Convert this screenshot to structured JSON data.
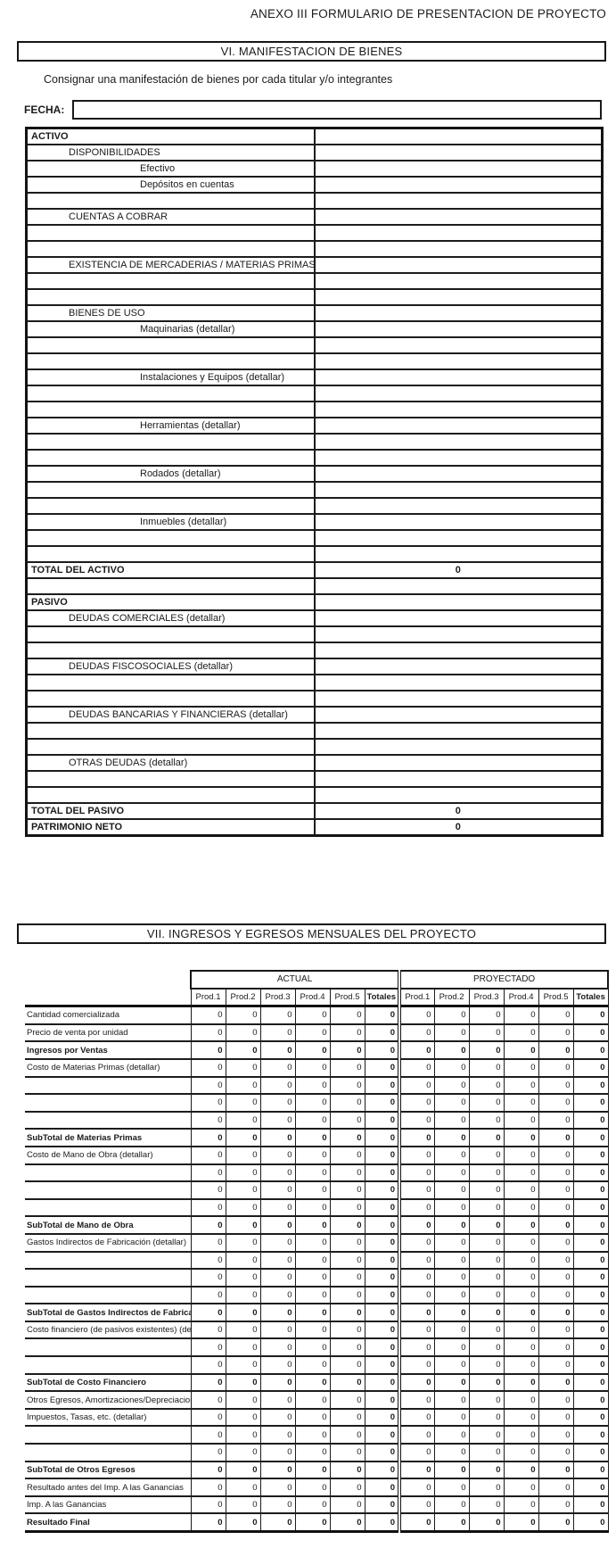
{
  "doc_title": "ANEXO III FORMULARIO DE PRESENTACION DE PROYECTO",
  "ink_color": "#1b1b1b",
  "section6": {
    "header": "VI. MANIFESTACION DE BIENES",
    "instruction": "Consignar una manifestación de bienes por cada titular y/o integrantes",
    "fecha_label": "FECHA:",
    "fecha_value": "",
    "rows": [
      {
        "label": "ACTIVO",
        "indent": 0,
        "bold": true,
        "value": ""
      },
      {
        "label": "DISPONIBILIDADES",
        "indent": 1
      },
      {
        "label": "Efectivo",
        "indent": 2
      },
      {
        "label": "Depósitos en cuentas",
        "indent": 2
      },
      {
        "label": ""
      },
      {
        "label": "CUENTAS A COBRAR",
        "indent": 1
      },
      {
        "label": ""
      },
      {
        "label": ""
      },
      {
        "label": "EXISTENCIA DE MERCADERIAS / MATERIAS PRIMAS",
        "indent": 1
      },
      {
        "label": ""
      },
      {
        "label": ""
      },
      {
        "label": "BIENES DE USO",
        "indent": 1
      },
      {
        "label": "Maquinarias (detallar)",
        "indent": 2
      },
      {
        "label": ""
      },
      {
        "label": ""
      },
      {
        "label": "Instalaciones y Equipos (detallar)",
        "indent": 2
      },
      {
        "label": ""
      },
      {
        "label": ""
      },
      {
        "label": "Herramientas (detallar)",
        "indent": 2
      },
      {
        "label": ""
      },
      {
        "label": ""
      },
      {
        "label": "Rodados (detallar)",
        "indent": 2
      },
      {
        "label": ""
      },
      {
        "label": ""
      },
      {
        "label": "Inmuebles (detallar)",
        "indent": 2
      },
      {
        "label": ""
      },
      {
        "label": ""
      },
      {
        "label": "TOTAL DEL ACTIVO",
        "indent": 0,
        "bold": true,
        "value": "0"
      },
      {
        "label": ""
      },
      {
        "label": "PASIVO",
        "indent": 0,
        "bold": true
      },
      {
        "label": "DEUDAS COMERCIALES (detallar)",
        "indent": 1
      },
      {
        "label": ""
      },
      {
        "label": ""
      },
      {
        "label": "DEUDAS FISCOSOCIALES (detallar)",
        "indent": 1
      },
      {
        "label": ""
      },
      {
        "label": ""
      },
      {
        "label": "DEUDAS BANCARIAS Y FINANCIERAS (detallar)",
        "indent": 1
      },
      {
        "label": ""
      },
      {
        "label": ""
      },
      {
        "label": "OTRAS DEUDAS (detallar)",
        "indent": 1
      },
      {
        "label": ""
      },
      {
        "label": ""
      },
      {
        "label": "TOTAL DEL PASIVO",
        "indent": 0,
        "bold": true,
        "value": "0"
      },
      {
        "label": "PATRIMONIO NETO",
        "indent": 0,
        "bold": true,
        "value": "0"
      }
    ]
  },
  "section7": {
    "header": "VII. INGRESOS Y EGRESOS MENSUALES DEL PROYECTO",
    "column_groups": [
      "ACTUAL",
      "PROYECTADO"
    ],
    "columns": [
      "Prod.1",
      "Prod.2",
      "Prod.3",
      "Prod.4",
      "Prod.5",
      "Totales"
    ],
    "rows": [
      {
        "label": "Cantidad comercializada",
        "values": [
          0,
          0,
          0,
          0,
          0,
          0,
          0,
          0,
          0,
          0,
          0,
          0
        ]
      },
      {
        "label": "Precio de venta por unidad",
        "values": [
          0,
          0,
          0,
          0,
          0,
          0,
          0,
          0,
          0,
          0,
          0,
          0
        ]
      },
      {
        "label": "Ingresos por Ventas",
        "bold": true,
        "values": [
          0,
          0,
          0,
          0,
          0,
          0,
          0,
          0,
          0,
          0,
          0,
          0
        ]
      },
      {
        "label": "Costo de Materias Primas (detallar)",
        "values": [
          0,
          0,
          0,
          0,
          0,
          0,
          0,
          0,
          0,
          0,
          0,
          0
        ]
      },
      {
        "label": "",
        "values": [
          0,
          0,
          0,
          0,
          0,
          0,
          0,
          0,
          0,
          0,
          0,
          0
        ]
      },
      {
        "label": "",
        "values": [
          0,
          0,
          0,
          0,
          0,
          0,
          0,
          0,
          0,
          0,
          0,
          0
        ]
      },
      {
        "label": "",
        "values": [
          0,
          0,
          0,
          0,
          0,
          0,
          0,
          0,
          0,
          0,
          0,
          0
        ]
      },
      {
        "label": "SubTotal de Materias Primas",
        "bold": true,
        "values": [
          0,
          0,
          0,
          0,
          0,
          0,
          0,
          0,
          0,
          0,
          0,
          0
        ]
      },
      {
        "label": "Costo de Mano de Obra (detallar)",
        "values": [
          0,
          0,
          0,
          0,
          0,
          0,
          0,
          0,
          0,
          0,
          0,
          0
        ]
      },
      {
        "label": "",
        "values": [
          0,
          0,
          0,
          0,
          0,
          0,
          0,
          0,
          0,
          0,
          0,
          0
        ]
      },
      {
        "label": "",
        "values": [
          0,
          0,
          0,
          0,
          0,
          0,
          0,
          0,
          0,
          0,
          0,
          0
        ]
      },
      {
        "label": "",
        "values": [
          0,
          0,
          0,
          0,
          0,
          0,
          0,
          0,
          0,
          0,
          0,
          0
        ]
      },
      {
        "label": "SubTotal de Mano de Obra",
        "bold": true,
        "values": [
          0,
          0,
          0,
          0,
          0,
          0,
          0,
          0,
          0,
          0,
          0,
          0
        ]
      },
      {
        "label": "Gastos Indirectos de Fabricación (detallar)",
        "values": [
          0,
          0,
          0,
          0,
          0,
          0,
          0,
          0,
          0,
          0,
          0,
          0
        ]
      },
      {
        "label": "",
        "values": [
          0,
          0,
          0,
          0,
          0,
          0,
          0,
          0,
          0,
          0,
          0,
          0
        ]
      },
      {
        "label": "",
        "values": [
          0,
          0,
          0,
          0,
          0,
          0,
          0,
          0,
          0,
          0,
          0,
          0
        ]
      },
      {
        "label": "",
        "values": [
          0,
          0,
          0,
          0,
          0,
          0,
          0,
          0,
          0,
          0,
          0,
          0
        ]
      },
      {
        "label": "SubTotal de Gastos Indirectos de Fabricación",
        "bold": true,
        "values": [
          0,
          0,
          0,
          0,
          0,
          0,
          0,
          0,
          0,
          0,
          0,
          0
        ]
      },
      {
        "label": "Costo financiero (de pasivos existentes) (detallar)",
        "values": [
          0,
          0,
          0,
          0,
          0,
          0,
          0,
          0,
          0,
          0,
          0,
          0
        ]
      },
      {
        "label": "",
        "values": [
          0,
          0,
          0,
          0,
          0,
          0,
          0,
          0,
          0,
          0,
          0,
          0
        ]
      },
      {
        "label": "",
        "values": [
          0,
          0,
          0,
          0,
          0,
          0,
          0,
          0,
          0,
          0,
          0,
          0
        ]
      },
      {
        "label": "SubTotal de Costo Financiero",
        "bold": true,
        "values": [
          0,
          0,
          0,
          0,
          0,
          0,
          0,
          0,
          0,
          0,
          0,
          0
        ]
      },
      {
        "label": "Otros Egresos, Amortizaciones/Depreciaciones,",
        "values": [
          0,
          0,
          0,
          0,
          0,
          0,
          0,
          0,
          0,
          0,
          0,
          0
        ]
      },
      {
        "label": "Impuestos, Tasas, etc. (detallar)",
        "values": [
          0,
          0,
          0,
          0,
          0,
          0,
          0,
          0,
          0,
          0,
          0,
          0
        ]
      },
      {
        "label": "",
        "values": [
          0,
          0,
          0,
          0,
          0,
          0,
          0,
          0,
          0,
          0,
          0,
          0
        ]
      },
      {
        "label": "",
        "values": [
          0,
          0,
          0,
          0,
          0,
          0,
          0,
          0,
          0,
          0,
          0,
          0
        ]
      },
      {
        "label": "SubTotal de Otros Egresos",
        "bold": true,
        "values": [
          0,
          0,
          0,
          0,
          0,
          0,
          0,
          0,
          0,
          0,
          0,
          0
        ]
      },
      {
        "label": "Resultado antes del Imp. A las Ganancias",
        "values": [
          0,
          0,
          0,
          0,
          0,
          0,
          0,
          0,
          0,
          0,
          0,
          0
        ]
      },
      {
        "label": "Imp. A las Ganancias",
        "values": [
          0,
          0,
          0,
          0,
          0,
          0,
          0,
          0,
          0,
          0,
          0,
          0
        ]
      },
      {
        "label": "Resultado Final",
        "bold": true,
        "values": [
          0,
          0,
          0,
          0,
          0,
          0,
          0,
          0,
          0,
          0,
          0,
          0
        ]
      }
    ]
  }
}
